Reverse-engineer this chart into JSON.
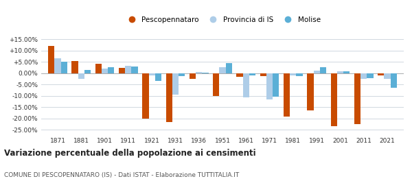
{
  "years": [
    1871,
    1881,
    1901,
    1911,
    1921,
    1931,
    1936,
    1951,
    1961,
    1971,
    1981,
    1991,
    2001,
    2011,
    2021
  ],
  "pescopennataro": [
    12.0,
    5.2,
    4.0,
    2.2,
    -20.0,
    -21.5,
    -2.5,
    -10.2,
    -1.5,
    -1.2,
    -19.0,
    -16.5,
    -23.5,
    -22.5,
    -1.0
  ],
  "provincia_is": [
    6.5,
    -2.5,
    2.0,
    3.2,
    -1.0,
    -9.5,
    0.5,
    2.5,
    -10.8,
    -11.5,
    -1.0,
    1.0,
    0.8,
    -2.5,
    -2.5
  ],
  "molise": [
    5.0,
    1.5,
    2.5,
    3.0,
    -3.5,
    -1.2,
    0.2,
    4.5,
    -1.0,
    -10.5,
    -1.2,
    2.5,
    0.8,
    -2.2,
    -6.5
  ],
  "color_pesco": "#c84b00",
  "color_provincia": "#aecde8",
  "color_molise": "#5bafd6",
  "title": "Variazione percentuale della popolazione ai censimenti",
  "subtitle": "COMUNE DI PESCOPENNATARO (IS) - Dati ISTAT - Elaborazione TUTTITALIA.IT",
  "ylim": [
    -27,
    17
  ],
  "yticks": [
    -25,
    -20,
    -15,
    -10,
    -5,
    0,
    5,
    10,
    15
  ],
  "ytick_labels": [
    "-25.00%",
    "-20.00%",
    "-15.00%",
    "-10.00%",
    "-5.00%",
    "0.00%",
    "+5.00%",
    "+10.00%",
    "+15.00%"
  ],
  "bar_width": 0.27,
  "background_color": "#ffffff",
  "grid_color": "#d0d8e0",
  "legend_labels": [
    "Pescopennataro",
    "Provincia di IS",
    "Molise"
  ]
}
